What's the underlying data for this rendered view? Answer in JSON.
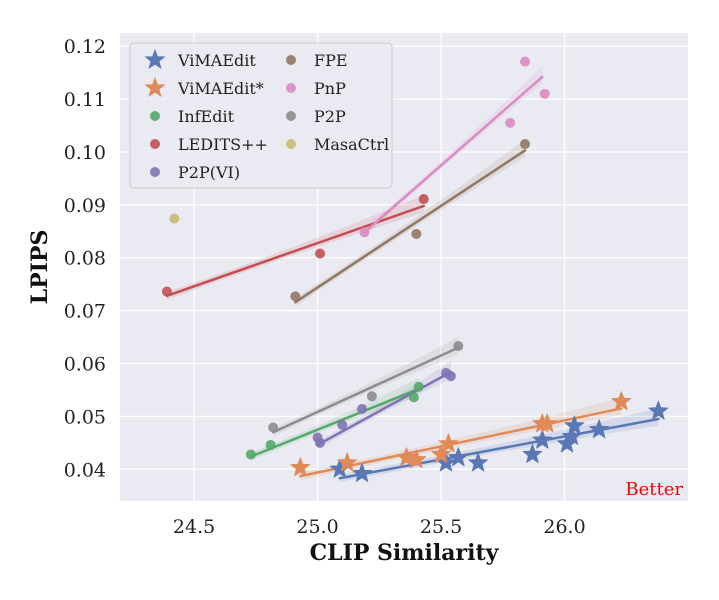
{
  "chart_data": {
    "type": "scatter",
    "xlabel": "CLIP Similarity",
    "ylabel": "LPIPS",
    "xlim": [
      24.2,
      26.5
    ],
    "ylim": [
      0.034,
      0.1225
    ],
    "xticks": [
      24.5,
      25.0,
      25.5,
      26.0
    ],
    "xtick_labels": [
      "24.5",
      "25.0",
      "25.5",
      "26.0"
    ],
    "yticks": [
      0.04,
      0.05,
      0.06,
      0.07,
      0.08,
      0.09,
      0.1,
      0.11,
      0.12
    ],
    "ytick_labels": [
      "0.04",
      "0.05",
      "0.06",
      "0.07",
      "0.08",
      "0.09",
      "0.10",
      "0.11",
      "0.12"
    ],
    "grid": true,
    "legend_position": "top-left",
    "annotation": {
      "text": "Better",
      "color": "#ff0000"
    },
    "series": [
      {
        "name": "ViMAEdit",
        "marker": "star",
        "color": "#5a78b5",
        "points": [
          [
            25.09,
            0.04
          ],
          [
            25.18,
            0.0392
          ],
          [
            25.52,
            0.0412
          ],
          [
            25.57,
            0.0422
          ],
          [
            25.65,
            0.0412
          ],
          [
            25.87,
            0.0428
          ],
          [
            25.91,
            0.0455
          ],
          [
            26.01,
            0.0448
          ],
          [
            26.03,
            0.0462
          ],
          [
            26.04,
            0.0482
          ],
          [
            26.14,
            0.0475
          ],
          [
            26.38,
            0.051
          ]
        ],
        "fit": [
          [
            25.09,
            0.0383
          ],
          [
            26.38,
            0.0495
          ]
        ]
      },
      {
        "name": "ViMAEdit*",
        "marker": "star",
        "color": "#e08a58",
        "points": [
          [
            24.93,
            0.0403
          ],
          [
            25.12,
            0.0412
          ],
          [
            25.36,
            0.0422
          ],
          [
            25.4,
            0.0418
          ],
          [
            25.5,
            0.0428
          ],
          [
            25.53,
            0.0448
          ],
          [
            25.91,
            0.0486
          ],
          [
            25.93,
            0.0486
          ],
          [
            26.23,
            0.0528
          ]
        ],
        "fit": [
          [
            24.93,
            0.0387
          ],
          [
            26.23,
            0.0515
          ]
        ]
      },
      {
        "name": "InfEdit",
        "marker": "circle",
        "color": "#55a868",
        "points": [
          [
            24.73,
            0.0428
          ],
          [
            24.81,
            0.0446
          ],
          [
            25.39,
            0.0536
          ],
          [
            25.41,
            0.0556
          ]
        ],
        "fit": [
          [
            24.73,
            0.0424
          ],
          [
            25.41,
            0.0552
          ]
        ]
      },
      {
        "name": "LEDITS++",
        "marker": "circle",
        "color": "#c44e52",
        "points": [
          [
            24.39,
            0.0736
          ],
          [
            25.01,
            0.0808
          ],
          [
            25.43,
            0.0911
          ]
        ],
        "fit": [
          [
            24.39,
            0.0728
          ],
          [
            25.43,
            0.0898
          ]
        ]
      },
      {
        "name": "P2P(VI)",
        "marker": "circle",
        "color": "#8172b3",
        "points": [
          [
            25.0,
            0.046
          ],
          [
            25.01,
            0.045
          ],
          [
            25.1,
            0.0484
          ],
          [
            25.18,
            0.0514
          ],
          [
            25.52,
            0.0582
          ],
          [
            25.54,
            0.0576
          ]
        ],
        "fit": [
          [
            25.0,
            0.0446
          ],
          [
            25.54,
            0.0584
          ]
        ]
      },
      {
        "name": "FPE",
        "marker": "circle",
        "color": "#937860",
        "points": [
          [
            24.91,
            0.0727
          ],
          [
            25.4,
            0.0845
          ],
          [
            25.84,
            0.1015
          ]
        ],
        "fit": [
          [
            24.91,
            0.0716
          ],
          [
            25.84,
            0.1003
          ]
        ]
      },
      {
        "name": "PnP",
        "marker": "circle",
        "color": "#da8bc3",
        "points": [
          [
            25.19,
            0.0848
          ],
          [
            25.78,
            0.1055
          ],
          [
            25.84,
            0.1171
          ],
          [
            25.92,
            0.111
          ]
        ],
        "fit": [
          [
            25.19,
            0.0848
          ],
          [
            25.91,
            0.1142
          ]
        ]
      },
      {
        "name": "P2P",
        "marker": "circle",
        "color": "#8c8c8c",
        "points": [
          [
            24.82,
            0.0479
          ],
          [
            25.22,
            0.0538
          ],
          [
            25.57,
            0.0633
          ]
        ],
        "fit": [
          [
            24.82,
            0.047
          ],
          [
            25.57,
            0.063
          ]
        ]
      },
      {
        "name": "MasaCtrl",
        "marker": "circle",
        "color": "#ccb974",
        "points": [
          [
            24.42,
            0.0874
          ]
        ],
        "fit": null
      }
    ]
  }
}
